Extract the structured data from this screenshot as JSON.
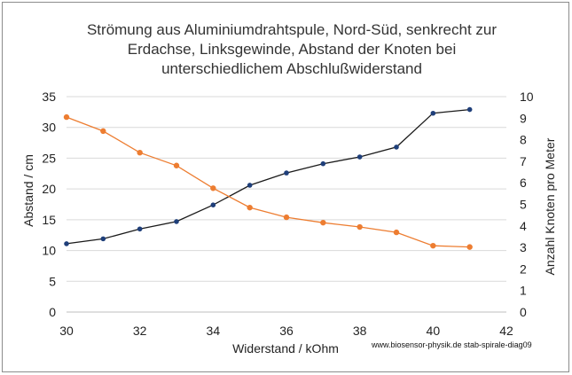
{
  "chart_data": {
    "type": "line",
    "title_lines": [
      "Strömung aus Aluminiumdrahtspule,  Nord-Süd, senkrecht zur",
      "Erdachse, Linksgewinde, Abstand der Knoten bei",
      "unterschiedlichem Abschlußwiderstand"
    ],
    "xlabel": "Widerstand / kOhm",
    "ylabel_left": "Abstand / cm",
    "ylabel_right": "Anzahl Knoten pro Meter",
    "xlim": [
      30,
      42
    ],
    "x_ticks": [
      "30",
      "32",
      "34",
      "36",
      "38",
      "40",
      "42"
    ],
    "ylim_left": [
      0,
      35
    ],
    "y_ticks_left": [
      "0",
      "5",
      "10",
      "15",
      "20",
      "25",
      "30",
      "35"
    ],
    "ylim_right": [
      0,
      10
    ],
    "y_ticks_right": [
      "0",
      "1",
      "2",
      "3",
      "4",
      "5",
      "6",
      "7",
      "8",
      "9",
      "10"
    ],
    "grid": "horizontal",
    "credit": "www.biosensor-physik.de  stab-spirale-diag09",
    "series": [
      {
        "axis": "left",
        "color": "#1a1a1a",
        "marker_color": "#1f3f7a",
        "x": [
          30,
          31,
          32,
          33,
          34,
          35,
          36,
          37,
          38,
          39,
          40,
          41
        ],
        "values": [
          11.1,
          11.9,
          13.5,
          14.7,
          17.4,
          20.6,
          22.6,
          24.1,
          25.2,
          26.8,
          32.3,
          32.9
        ]
      },
      {
        "axis": "right",
        "color": "#ed7d31",
        "marker_color": "#ed7d31",
        "x": [
          30,
          31,
          32,
          33,
          34,
          35,
          36,
          37,
          38,
          39,
          40,
          41
        ],
        "values": [
          9.05,
          8.4,
          7.4,
          6.8,
          5.75,
          4.85,
          4.4,
          4.15,
          3.95,
          3.7,
          3.08,
          3.02
        ]
      }
    ]
  }
}
